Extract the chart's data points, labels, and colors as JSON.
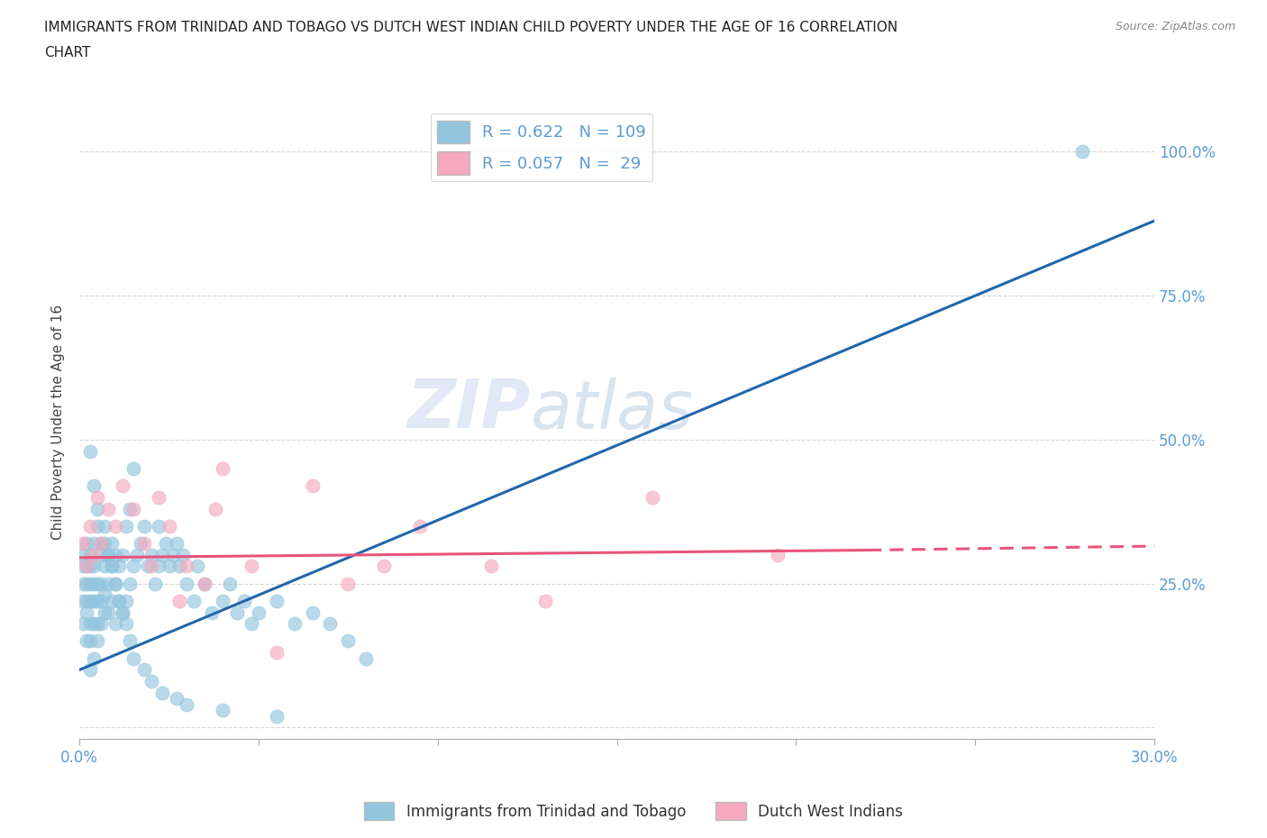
{
  "title_line1": "IMMIGRANTS FROM TRINIDAD AND TOBAGO VS DUTCH WEST INDIAN CHILD POVERTY UNDER THE AGE OF 16 CORRELATION",
  "title_line2": "CHART",
  "source": "Source: ZipAtlas.com",
  "ylabel": "Child Poverty Under the Age of 16",
  "xlim": [
    0.0,
    0.3
  ],
  "ylim": [
    -0.02,
    1.08
  ],
  "xticks": [
    0.0,
    0.05,
    0.1,
    0.15,
    0.2,
    0.25,
    0.3
  ],
  "xticklabels": [
    "0.0%",
    "",
    "",
    "",
    "",
    "",
    "30.0%"
  ],
  "yticks": [
    0.0,
    0.25,
    0.5,
    0.75,
    1.0
  ],
  "yticklabels": [
    "",
    "25.0%",
    "50.0%",
    "75.0%",
    "100.0%"
  ],
  "legend1_label": "Immigrants from Trinidad and Tobago",
  "legend2_label": "Dutch West Indians",
  "R1": 0.622,
  "N1": 109,
  "R2": 0.057,
  "N2": 29,
  "blue_color": "#92c5de",
  "pink_color": "#f4a9be",
  "blue_line_color": "#2166ac",
  "pink_line_color": "#e8547a",
  "watermark_zip": "ZIP",
  "watermark_atlas": "atlas",
  "blue_scatter_x": [
    0.001,
    0.001,
    0.001,
    0.001,
    0.001,
    0.002,
    0.002,
    0.002,
    0.002,
    0.002,
    0.002,
    0.003,
    0.003,
    0.003,
    0.003,
    0.003,
    0.003,
    0.003,
    0.004,
    0.004,
    0.004,
    0.004,
    0.004,
    0.004,
    0.005,
    0.005,
    0.005,
    0.005,
    0.005,
    0.006,
    0.006,
    0.006,
    0.006,
    0.007,
    0.007,
    0.007,
    0.007,
    0.008,
    0.008,
    0.008,
    0.009,
    0.009,
    0.009,
    0.01,
    0.01,
    0.01,
    0.011,
    0.011,
    0.012,
    0.012,
    0.013,
    0.013,
    0.014,
    0.014,
    0.015,
    0.015,
    0.016,
    0.017,
    0.018,
    0.019,
    0.02,
    0.021,
    0.022,
    0.022,
    0.023,
    0.024,
    0.025,
    0.026,
    0.027,
    0.028,
    0.029,
    0.03,
    0.032,
    0.033,
    0.035,
    0.037,
    0.04,
    0.042,
    0.044,
    0.046,
    0.048,
    0.05,
    0.055,
    0.06,
    0.065,
    0.07,
    0.075,
    0.08,
    0.003,
    0.004,
    0.005,
    0.006,
    0.007,
    0.008,
    0.009,
    0.01,
    0.011,
    0.012,
    0.013,
    0.014,
    0.015,
    0.018,
    0.02,
    0.023,
    0.027,
    0.03,
    0.04,
    0.055,
    0.28
  ],
  "blue_scatter_y": [
    0.18,
    0.22,
    0.25,
    0.28,
    0.3,
    0.15,
    0.2,
    0.22,
    0.25,
    0.28,
    0.32,
    0.1,
    0.15,
    0.18,
    0.22,
    0.25,
    0.28,
    0.3,
    0.12,
    0.18,
    0.22,
    0.25,
    0.28,
    0.32,
    0.15,
    0.18,
    0.22,
    0.25,
    0.35,
    0.18,
    0.22,
    0.25,
    0.3,
    0.2,
    0.23,
    0.28,
    0.32,
    0.2,
    0.25,
    0.3,
    0.22,
    0.28,
    0.32,
    0.18,
    0.25,
    0.3,
    0.22,
    0.28,
    0.2,
    0.3,
    0.22,
    0.35,
    0.25,
    0.38,
    0.28,
    0.45,
    0.3,
    0.32,
    0.35,
    0.28,
    0.3,
    0.25,
    0.28,
    0.35,
    0.3,
    0.32,
    0.28,
    0.3,
    0.32,
    0.28,
    0.3,
    0.25,
    0.22,
    0.28,
    0.25,
    0.2,
    0.22,
    0.25,
    0.2,
    0.22,
    0.18,
    0.2,
    0.22,
    0.18,
    0.2,
    0.18,
    0.15,
    0.12,
    0.48,
    0.42,
    0.38,
    0.32,
    0.35,
    0.3,
    0.28,
    0.25,
    0.22,
    0.2,
    0.18,
    0.15,
    0.12,
    0.1,
    0.08,
    0.06,
    0.05,
    0.04,
    0.03,
    0.02,
    1.0
  ],
  "pink_scatter_x": [
    0.001,
    0.002,
    0.003,
    0.004,
    0.005,
    0.006,
    0.008,
    0.01,
    0.012,
    0.015,
    0.018,
    0.02,
    0.022,
    0.025,
    0.028,
    0.03,
    0.035,
    0.038,
    0.04,
    0.048,
    0.055,
    0.065,
    0.075,
    0.085,
    0.095,
    0.115,
    0.13,
    0.16,
    0.195
  ],
  "pink_scatter_y": [
    0.32,
    0.28,
    0.35,
    0.3,
    0.4,
    0.32,
    0.38,
    0.35,
    0.42,
    0.38,
    0.32,
    0.28,
    0.4,
    0.35,
    0.22,
    0.28,
    0.25,
    0.38,
    0.45,
    0.28,
    0.13,
    0.42,
    0.25,
    0.28,
    0.35,
    0.28,
    0.22,
    0.4,
    0.3
  ],
  "blue_trend_x": [
    0.0,
    0.3
  ],
  "blue_trend_y": [
    0.1,
    0.88
  ],
  "pink_trend_x": [
    0.0,
    0.3
  ],
  "pink_trend_y": [
    0.295,
    0.315
  ],
  "background_color": "#ffffff",
  "grid_color": "#cccccc",
  "tick_color": "#5b9bd5"
}
